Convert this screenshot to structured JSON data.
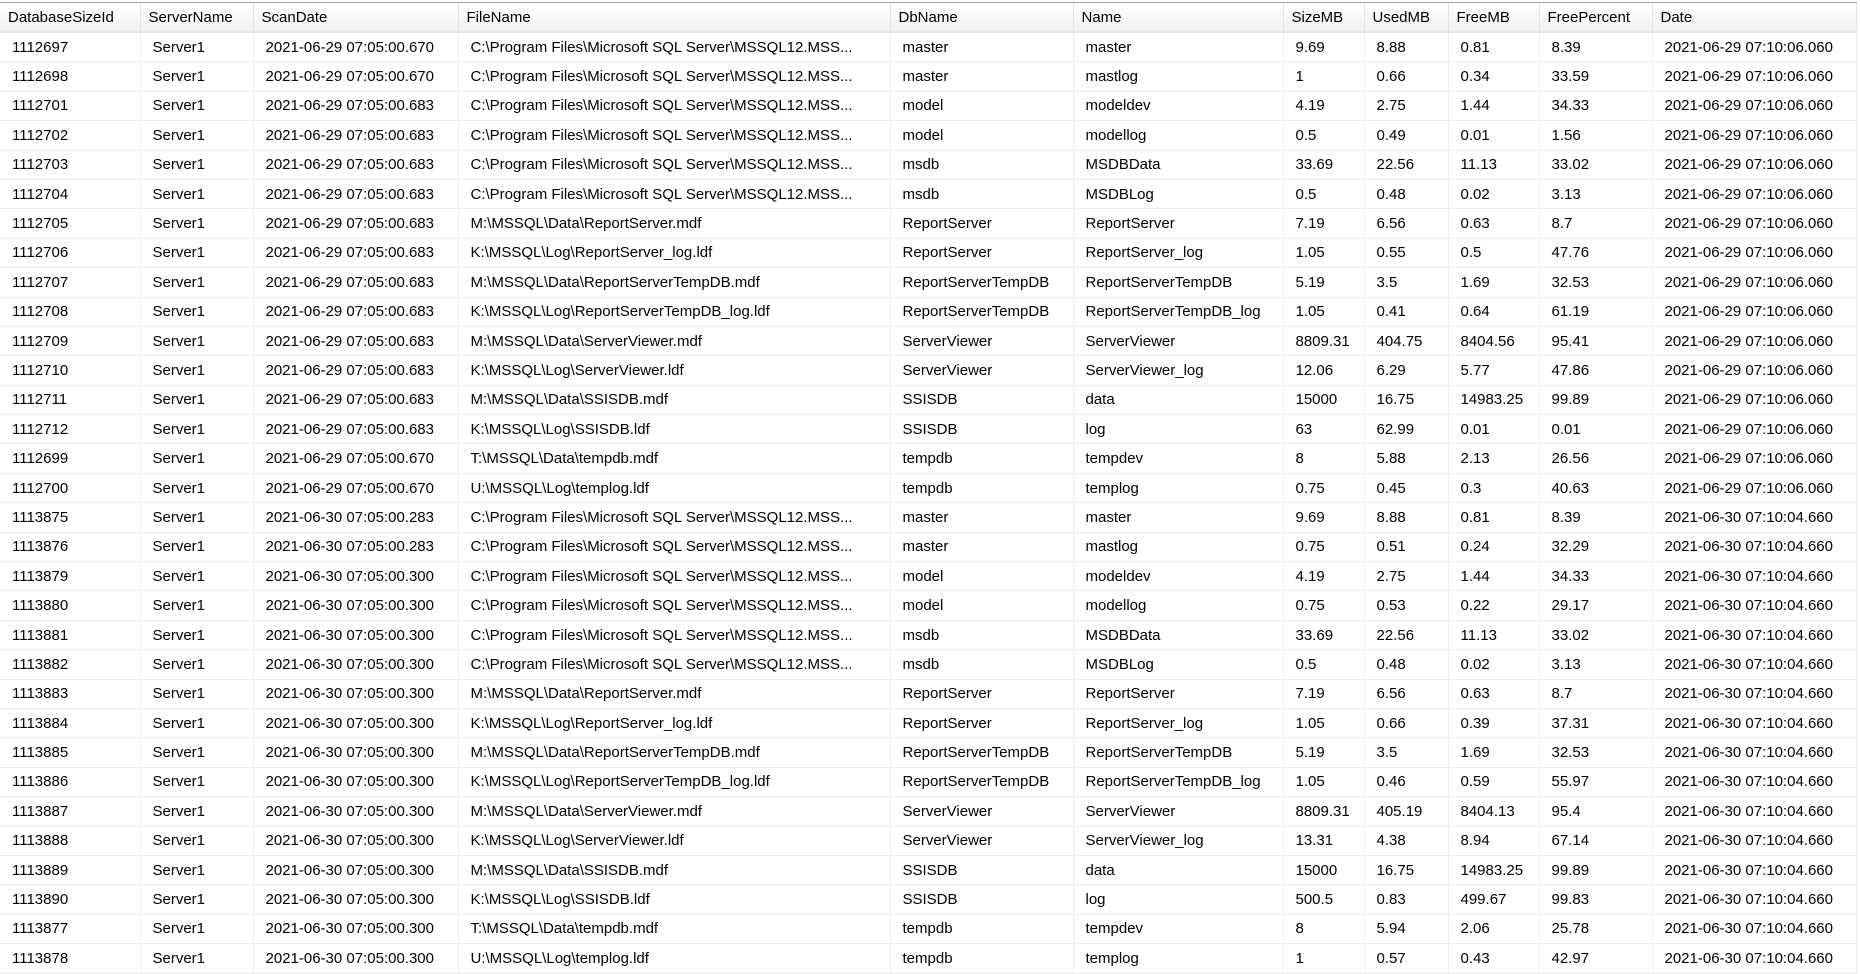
{
  "columns": [
    "DatabaseSizeId",
    "ServerName",
    "ScanDate",
    "FileName",
    "DbName",
    "Name",
    "SizeMB",
    "UsedMB",
    "FreeMB",
    "FreePercent",
    "Date"
  ],
  "rows": [
    [
      "1112697",
      "Server1",
      "2021-06-29 07:05:00.670",
      "C:\\Program Files\\Microsoft SQL Server\\MSSQL12.MSS...",
      "master",
      "master",
      "9.69",
      "8.88",
      "0.81",
      "8.39",
      "2021-06-29 07:10:06.060"
    ],
    [
      "1112698",
      "Server1",
      "2021-06-29 07:05:00.670",
      "C:\\Program Files\\Microsoft SQL Server\\MSSQL12.MSS...",
      "master",
      "mastlog",
      "1",
      "0.66",
      "0.34",
      "33.59",
      "2021-06-29 07:10:06.060"
    ],
    [
      "1112701",
      "Server1",
      "2021-06-29 07:05:00.683",
      "C:\\Program Files\\Microsoft SQL Server\\MSSQL12.MSS...",
      "model",
      "modeldev",
      "4.19",
      "2.75",
      "1.44",
      "34.33",
      "2021-06-29 07:10:06.060"
    ],
    [
      "1112702",
      "Server1",
      "2021-06-29 07:05:00.683",
      "C:\\Program Files\\Microsoft SQL Server\\MSSQL12.MSS...",
      "model",
      "modellog",
      "0.5",
      "0.49",
      "0.01",
      "1.56",
      "2021-06-29 07:10:06.060"
    ],
    [
      "1112703",
      "Server1",
      "2021-06-29 07:05:00.683",
      "C:\\Program Files\\Microsoft SQL Server\\MSSQL12.MSS...",
      "msdb",
      "MSDBData",
      "33.69",
      "22.56",
      "11.13",
      "33.02",
      "2021-06-29 07:10:06.060"
    ],
    [
      "1112704",
      "Server1",
      "2021-06-29 07:05:00.683",
      "C:\\Program Files\\Microsoft SQL Server\\MSSQL12.MSS...",
      "msdb",
      "MSDBLog",
      "0.5",
      "0.48",
      "0.02",
      "3.13",
      "2021-06-29 07:10:06.060"
    ],
    [
      "1112705",
      "Server1",
      "2021-06-29 07:05:00.683",
      "M:\\MSSQL\\Data\\ReportServer.mdf",
      "ReportServer",
      "ReportServer",
      "7.19",
      "6.56",
      "0.63",
      "8.7",
      "2021-06-29 07:10:06.060"
    ],
    [
      "1112706",
      "Server1",
      "2021-06-29 07:05:00.683",
      "K:\\MSSQL\\Log\\ReportServer_log.ldf",
      "ReportServer",
      "ReportServer_log",
      "1.05",
      "0.55",
      "0.5",
      "47.76",
      "2021-06-29 07:10:06.060"
    ],
    [
      "1112707",
      "Server1",
      "2021-06-29 07:05:00.683",
      "M:\\MSSQL\\Data\\ReportServerTempDB.mdf",
      "ReportServerTempDB",
      "ReportServerTempDB",
      "5.19",
      "3.5",
      "1.69",
      "32.53",
      "2021-06-29 07:10:06.060"
    ],
    [
      "1112708",
      "Server1",
      "2021-06-29 07:05:00.683",
      "K:\\MSSQL\\Log\\ReportServerTempDB_log.ldf",
      "ReportServerTempDB",
      "ReportServerTempDB_log",
      "1.05",
      "0.41",
      "0.64",
      "61.19",
      "2021-06-29 07:10:06.060"
    ],
    [
      "1112709",
      "Server1",
      "2021-06-29 07:05:00.683",
      "M:\\MSSQL\\Data\\ServerViewer.mdf",
      "ServerViewer",
      "ServerViewer",
      "8809.31",
      "404.75",
      "8404.56",
      "95.41",
      "2021-06-29 07:10:06.060"
    ],
    [
      "1112710",
      "Server1",
      "2021-06-29 07:05:00.683",
      "K:\\MSSQL\\Log\\ServerViewer.ldf",
      "ServerViewer",
      "ServerViewer_log",
      "12.06",
      "6.29",
      "5.77",
      "47.86",
      "2021-06-29 07:10:06.060"
    ],
    [
      "1112711",
      "Server1",
      "2021-06-29 07:05:00.683",
      "M:\\MSSQL\\Data\\SSISDB.mdf",
      "SSISDB",
      "data",
      "15000",
      "16.75",
      "14983.25",
      "99.89",
      "2021-06-29 07:10:06.060"
    ],
    [
      "1112712",
      "Server1",
      "2021-06-29 07:05:00.683",
      "K:\\MSSQL\\Log\\SSISDB.ldf",
      "SSISDB",
      "log",
      "63",
      "62.99",
      "0.01",
      "0.01",
      "2021-06-29 07:10:06.060"
    ],
    [
      "1112699",
      "Server1",
      "2021-06-29 07:05:00.670",
      "T:\\MSSQL\\Data\\tempdb.mdf",
      "tempdb",
      "tempdev",
      "8",
      "5.88",
      "2.13",
      "26.56",
      "2021-06-29 07:10:06.060"
    ],
    [
      "1112700",
      "Server1",
      "2021-06-29 07:05:00.670",
      "U:\\MSSQL\\Log\\templog.ldf",
      "tempdb",
      "templog",
      "0.75",
      "0.45",
      "0.3",
      "40.63",
      "2021-06-29 07:10:06.060"
    ],
    [
      "1113875",
      "Server1",
      "2021-06-30 07:05:00.283",
      "C:\\Program Files\\Microsoft SQL Server\\MSSQL12.MSS...",
      "master",
      "master",
      "9.69",
      "8.88",
      "0.81",
      "8.39",
      "2021-06-30 07:10:04.660"
    ],
    [
      "1113876",
      "Server1",
      "2021-06-30 07:05:00.283",
      "C:\\Program Files\\Microsoft SQL Server\\MSSQL12.MSS...",
      "master",
      "mastlog",
      "0.75",
      "0.51",
      "0.24",
      "32.29",
      "2021-06-30 07:10:04.660"
    ],
    [
      "1113879",
      "Server1",
      "2021-06-30 07:05:00.300",
      "C:\\Program Files\\Microsoft SQL Server\\MSSQL12.MSS...",
      "model",
      "modeldev",
      "4.19",
      "2.75",
      "1.44",
      "34.33",
      "2021-06-30 07:10:04.660"
    ],
    [
      "1113880",
      "Server1",
      "2021-06-30 07:05:00.300",
      "C:\\Program Files\\Microsoft SQL Server\\MSSQL12.MSS...",
      "model",
      "modellog",
      "0.75",
      "0.53",
      "0.22",
      "29.17",
      "2021-06-30 07:10:04.660"
    ],
    [
      "1113881",
      "Server1",
      "2021-06-30 07:05:00.300",
      "C:\\Program Files\\Microsoft SQL Server\\MSSQL12.MSS...",
      "msdb",
      "MSDBData",
      "33.69",
      "22.56",
      "11.13",
      "33.02",
      "2021-06-30 07:10:04.660"
    ],
    [
      "1113882",
      "Server1",
      "2021-06-30 07:05:00.300",
      "C:\\Program Files\\Microsoft SQL Server\\MSSQL12.MSS...",
      "msdb",
      "MSDBLog",
      "0.5",
      "0.48",
      "0.02",
      "3.13",
      "2021-06-30 07:10:04.660"
    ],
    [
      "1113883",
      "Server1",
      "2021-06-30 07:05:00.300",
      "M:\\MSSQL\\Data\\ReportServer.mdf",
      "ReportServer",
      "ReportServer",
      "7.19",
      "6.56",
      "0.63",
      "8.7",
      "2021-06-30 07:10:04.660"
    ],
    [
      "1113884",
      "Server1",
      "2021-06-30 07:05:00.300",
      "K:\\MSSQL\\Log\\ReportServer_log.ldf",
      "ReportServer",
      "ReportServer_log",
      "1.05",
      "0.66",
      "0.39",
      "37.31",
      "2021-06-30 07:10:04.660"
    ],
    [
      "1113885",
      "Server1",
      "2021-06-30 07:05:00.300",
      "M:\\MSSQL\\Data\\ReportServerTempDB.mdf",
      "ReportServerTempDB",
      "ReportServerTempDB",
      "5.19",
      "3.5",
      "1.69",
      "32.53",
      "2021-06-30 07:10:04.660"
    ],
    [
      "1113886",
      "Server1",
      "2021-06-30 07:05:00.300",
      "K:\\MSSQL\\Log\\ReportServerTempDB_log.ldf",
      "ReportServerTempDB",
      "ReportServerTempDB_log",
      "1.05",
      "0.46",
      "0.59",
      "55.97",
      "2021-06-30 07:10:04.660"
    ],
    [
      "1113887",
      "Server1",
      "2021-06-30 07:05:00.300",
      "M:\\MSSQL\\Data\\ServerViewer.mdf",
      "ServerViewer",
      "ServerViewer",
      "8809.31",
      "405.19",
      "8404.13",
      "95.4",
      "2021-06-30 07:10:04.660"
    ],
    [
      "1113888",
      "Server1",
      "2021-06-30 07:05:00.300",
      "K:\\MSSQL\\Log\\ServerViewer.ldf",
      "ServerViewer",
      "ServerViewer_log",
      "13.31",
      "4.38",
      "8.94",
      "67.14",
      "2021-06-30 07:10:04.660"
    ],
    [
      "1113889",
      "Server1",
      "2021-06-30 07:05:00.300",
      "M:\\MSSQL\\Data\\SSISDB.mdf",
      "SSISDB",
      "data",
      "15000",
      "16.75",
      "14983.25",
      "99.89",
      "2021-06-30 07:10:04.660"
    ],
    [
      "1113890",
      "Server1",
      "2021-06-30 07:05:00.300",
      "K:\\MSSQL\\Log\\SSISDB.ldf",
      "SSISDB",
      "log",
      "500.5",
      "0.83",
      "499.67",
      "99.83",
      "2021-06-30 07:10:04.660"
    ],
    [
      "1113877",
      "Server1",
      "2021-06-30 07:05:00.300",
      "T:\\MSSQL\\Data\\tempdb.mdf",
      "tempdb",
      "tempdev",
      "8",
      "5.94",
      "2.06",
      "25.78",
      "2021-06-30 07:10:04.660"
    ],
    [
      "1113878",
      "Server1",
      "2021-06-30 07:05:00.300",
      "U:\\MSSQL\\Log\\templog.ldf",
      "tempdb",
      "templog",
      "1",
      "0.57",
      "0.43",
      "42.97",
      "2021-06-30 07:10:04.660"
    ]
  ]
}
